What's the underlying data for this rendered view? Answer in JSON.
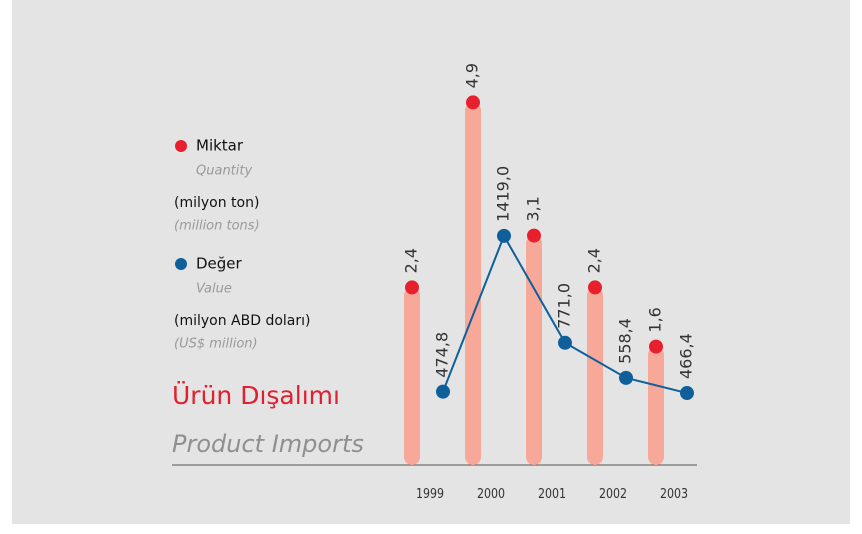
{
  "chart_data": {
    "type": "bar",
    "title": "Ürün Dışalımı",
    "subtitle": "Product Imports",
    "categories": [
      "1999",
      "2000",
      "2001",
      "2002",
      "2003"
    ],
    "series": [
      {
        "name": "Miktar",
        "name_en": "Quantity",
        "unit": "(milyon ton)",
        "unit_en": "(million tons)",
        "type": "bar",
        "color": "#e8202e",
        "bar_color": "#f7a898",
        "values": [
          2.4,
          4.9,
          3.1,
          2.4,
          1.6
        ],
        "value_labels": [
          "2,4",
          "4,9",
          "3,1",
          "2,4",
          "1,6"
        ]
      },
      {
        "name": "Değer",
        "name_en": "Value",
        "unit": "(milyon ABD doları)",
        "unit_en": "(US$ million)",
        "type": "line",
        "color": "#0f5f9b",
        "values": [
          474.8,
          1419.0,
          771.0,
          558.4,
          466.4
        ],
        "value_labels": [
          "474,8",
          "1419,0",
          "771,0",
          "558,4",
          "466,4"
        ]
      }
    ]
  }
}
